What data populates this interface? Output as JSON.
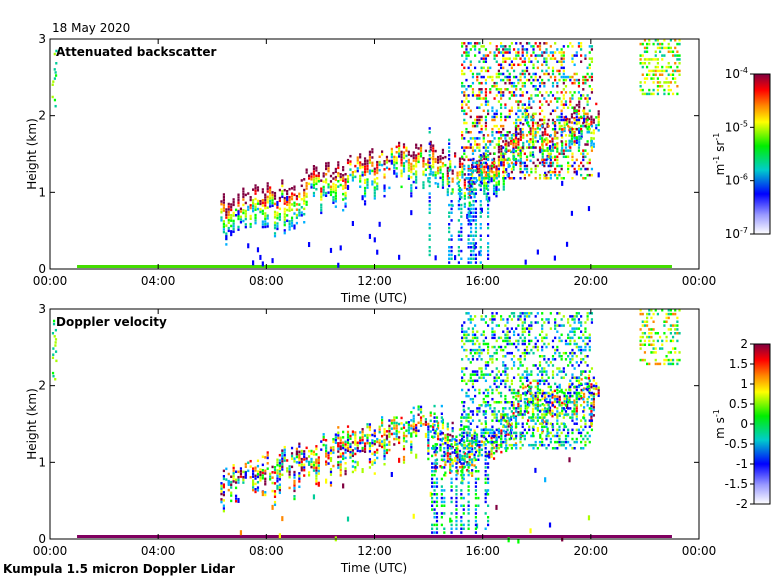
{
  "date_label": "18 May 2020",
  "instrument_label": "Kumpula 1.5 micron Doppler Lidar",
  "chart_data": [
    {
      "type": "heatmap",
      "title": "Attenuated backscatter",
      "xlabel": "Time (UTC)",
      "ylabel": "Height (km)",
      "xlim": [
        "00:00",
        "24:00"
      ],
      "ylim": [
        0,
        3
      ],
      "x_ticks": [
        "00:00",
        "04:00",
        "08:00",
        "12:00",
        "16:00",
        "20:00",
        "00:00"
      ],
      "y_ticks": [
        "0",
        "1",
        "2",
        "3"
      ],
      "colorbar": {
        "label": "m^-1 sr^-1",
        "scale": "log",
        "range": [
          1e-07,
          0.0001
        ],
        "ticks": [
          {
            "base": "10",
            "exp": "-4"
          },
          {
            "base": "10",
            "exp": "-5"
          },
          {
            "base": "10",
            "exp": "-6"
          },
          {
            "base": "10",
            "exp": "-7"
          }
        ],
        "colormap": [
          "#ffffff",
          "#0000ff",
          "#00cc99",
          "#00ff00",
          "#ffff00",
          "#ff8800",
          "#ff0000",
          "#800040"
        ]
      },
      "features": {
        "boundary_layer_tops_km": [
          [
            6.5,
            0.9
          ],
          [
            7.5,
            1.0
          ],
          [
            8.5,
            1.1
          ],
          [
            9.5,
            1.25
          ],
          [
            10.5,
            1.35
          ],
          [
            11.5,
            1.45
          ],
          [
            12.5,
            1.55
          ],
          [
            13.5,
            1.7
          ],
          [
            14.5,
            1.5
          ],
          [
            15.5,
            1.3
          ],
          [
            16.5,
            1.5
          ],
          [
            17.5,
            2.0
          ],
          [
            18.5,
            1.9
          ],
          [
            19.5,
            2.1
          ]
        ],
        "surface_band_hours": [
          1,
          23
        ]
      }
    },
    {
      "type": "heatmap",
      "title": "Doppler velocity",
      "xlabel": "Time (UTC)",
      "ylabel": "Height (km)",
      "xlim": [
        "00:00",
        "24:00"
      ],
      "ylim": [
        0,
        3
      ],
      "x_ticks": [
        "00:00",
        "04:00",
        "08:00",
        "12:00",
        "16:00",
        "20:00",
        "00:00"
      ],
      "y_ticks": [
        "0",
        "1",
        "2",
        "3"
      ],
      "colorbar": {
        "label": "m s^-1",
        "scale": "linear",
        "range": [
          -2,
          2
        ],
        "ticks": [
          "2",
          "1.5",
          "1",
          "0.5",
          "0",
          "-0.5",
          "-1",
          "-1.5",
          "-2"
        ],
        "colormap": [
          "#ffffff",
          "#0000ff",
          "#00cc99",
          "#00ff00",
          "#ffff00",
          "#ff8800",
          "#ff0000",
          "#800040"
        ]
      }
    }
  ]
}
